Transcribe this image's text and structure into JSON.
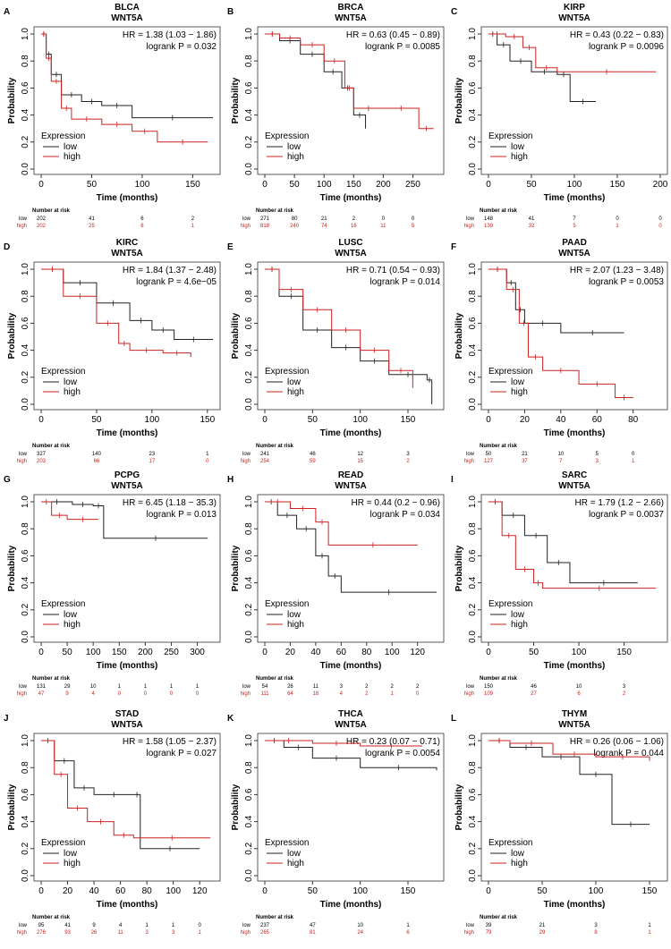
{
  "colors": {
    "low": "#222222",
    "high": "#cc2222"
  },
  "common": {
    "ylabel": "Probability",
    "xlabel": "Time (months)",
    "legend_title": "Expression",
    "legend_low": "low",
    "legend_high": "high",
    "risk_title": "Number at risk",
    "yticks": [
      "0.0",
      "0.2",
      "0.4",
      "0.6",
      "0.8",
      "1.0"
    ]
  },
  "chart_data": [
    {
      "type": "line",
      "letter": "A",
      "cancer": "BLCA",
      "gene": "WNT5A",
      "hr": "HR = 1.38 (1.03 − 1.86)",
      "p": "logrank P = 0.032",
      "xlim": [
        0,
        170
      ],
      "xticks": [
        0,
        50,
        100,
        150
      ],
      "ylim": [
        0,
        1
      ],
      "risk": {
        "low": [
          "202",
          "41",
          "6",
          "2"
        ],
        "high": [
          "202",
          "25",
          "6",
          "1"
        ]
      },
      "series": [
        {
          "name": "low",
          "x": [
            0,
            5,
            10,
            20,
            40,
            60,
            90,
            170
          ],
          "y": [
            1,
            0.85,
            0.7,
            0.55,
            0.5,
            0.47,
            0.38,
            0.38
          ]
        },
        {
          "name": "high",
          "x": [
            0,
            5,
            10,
            20,
            30,
            60,
            90,
            115,
            165
          ],
          "y": [
            1,
            0.82,
            0.65,
            0.45,
            0.37,
            0.33,
            0.28,
            0.2,
            0.2
          ]
        }
      ]
    },
    {
      "type": "line",
      "letter": "B",
      "cancer": "BRCA",
      "gene": "WNT5A",
      "hr": "HR = 0.63 (0.45 − 0.89)",
      "p": "logrank P = 0.0085",
      "xlim": [
        0,
        290
      ],
      "xticks": [
        0,
        50,
        100,
        150,
        200,
        250
      ],
      "ylim": [
        0,
        1
      ],
      "risk": {
        "low": [
          "271",
          "80",
          "21",
          "2",
          "0",
          "0"
        ],
        "high": [
          "818",
          "240",
          "74",
          "16",
          "11",
          "5"
        ]
      },
      "series": [
        {
          "name": "low",
          "x": [
            0,
            25,
            60,
            100,
            130,
            150,
            170
          ],
          "y": [
            1,
            0.95,
            0.85,
            0.72,
            0.6,
            0.4,
            0.3
          ]
        },
        {
          "name": "high",
          "x": [
            0,
            25,
            60,
            100,
            135,
            150,
            200,
            260,
            285
          ],
          "y": [
            1,
            0.97,
            0.92,
            0.8,
            0.6,
            0.45,
            0.45,
            0.3,
            0.3
          ]
        }
      ]
    },
    {
      "type": "line",
      "letter": "C",
      "cancer": "KIRP",
      "gene": "WNT5A",
      "hr": "HR = 0.43 (0.22 − 0.83)",
      "p": "logrank P = 0.0096",
      "xlim": [
        0,
        200
      ],
      "xticks": [
        0,
        50,
        100,
        150,
        200
      ],
      "ylim": [
        0,
        1
      ],
      "risk": {
        "low": [
          "148",
          "41",
          "7",
          "0",
          "0"
        ],
        "high": [
          "139",
          "32",
          "5",
          "1",
          "0"
        ]
      },
      "series": [
        {
          "name": "low",
          "x": [
            0,
            10,
            25,
            50,
            80,
            95,
            125
          ],
          "y": [
            1,
            0.92,
            0.8,
            0.72,
            0.7,
            0.5,
            0.5
          ]
        },
        {
          "name": "high",
          "x": [
            0,
            20,
            40,
            55,
            80,
            195
          ],
          "y": [
            1,
            0.98,
            0.9,
            0.75,
            0.72,
            0.72
          ]
        }
      ]
    },
    {
      "type": "line",
      "letter": "D",
      "cancer": "KIRC",
      "gene": "WNT5A",
      "hr": "HR = 1.84 (1.37 − 2.48)",
      "p": "logrank P = 4.6e−05",
      "xlim": [
        0,
        155
      ],
      "xticks": [
        0,
        50,
        100,
        150
      ],
      "ylim": [
        0,
        1
      ],
      "risk": {
        "low": [
          "327",
          "140",
          "23",
          "1"
        ],
        "high": [
          "203",
          "66",
          "17",
          "0"
        ]
      },
      "series": [
        {
          "name": "low",
          "x": [
            0,
            20,
            50,
            80,
            100,
            120,
            155
          ],
          "y": [
            1,
            0.9,
            0.75,
            0.62,
            0.55,
            0.48,
            0.48
          ]
        },
        {
          "name": "high",
          "x": [
            0,
            20,
            50,
            70,
            80,
            110,
            135
          ],
          "y": [
            1,
            0.8,
            0.6,
            0.45,
            0.4,
            0.38,
            0.35
          ]
        }
      ]
    },
    {
      "type": "line",
      "letter": "E",
      "cancer": "LUSC",
      "gene": "WNT5A",
      "hr": "HR = 0.71 (0.54 − 0.93)",
      "p": "logrank P = 0.014",
      "xlim": [
        0,
        180
      ],
      "xticks": [
        0,
        50,
        100,
        150
      ],
      "ylim": [
        0,
        1
      ],
      "risk": {
        "low": [
          "241",
          "46",
          "12",
          "3"
        ],
        "high": [
          "254",
          "59",
          "15",
          "2"
        ]
      },
      "series": [
        {
          "name": "low",
          "x": [
            0,
            15,
            40,
            70,
            100,
            130,
            170,
            175
          ],
          "y": [
            1,
            0.8,
            0.55,
            0.42,
            0.32,
            0.22,
            0.18,
            0
          ]
        },
        {
          "name": "high",
          "x": [
            0,
            15,
            40,
            70,
            100,
            130,
            155
          ],
          "y": [
            1,
            0.85,
            0.7,
            0.55,
            0.4,
            0.25,
            0.12
          ]
        }
      ]
    },
    {
      "type": "line",
      "letter": "F",
      "cancer": "PAAD",
      "gene": "WNT5A",
      "hr": "HR = 2.07 (1.23 − 3.48)",
      "p": "logrank P = 0.0053",
      "xlim": [
        0,
        95
      ],
      "xticks": [
        0,
        20,
        40,
        60,
        80
      ],
      "ylim": [
        0,
        1
      ],
      "risk": {
        "low": [
          "50",
          "21",
          "10",
          "5",
          "0"
        ],
        "high": [
          "127",
          "37",
          "7",
          "3",
          "1"
        ]
      },
      "series": [
        {
          "name": "low",
          "x": [
            0,
            10,
            15,
            20,
            40,
            75
          ],
          "y": [
            1,
            0.9,
            0.7,
            0.6,
            0.53,
            0.53
          ]
        },
        {
          "name": "high",
          "x": [
            0,
            10,
            17,
            22,
            30,
            50,
            70,
            80
          ],
          "y": [
            1,
            0.85,
            0.6,
            0.35,
            0.25,
            0.15,
            0.05,
            0.05
          ]
        }
      ]
    },
    {
      "type": "line",
      "letter": "G",
      "cancer": "PCPG",
      "gene": "WNT5A",
      "hr": "HR = 6.45 (1.18 − 35.3)",
      "p": "logrank P = 0.013",
      "xlim": [
        0,
        330
      ],
      "xticks": [
        0,
        50,
        100,
        150,
        200,
        250,
        300
      ],
      "ylim": [
        0,
        1
      ],
      "risk": {
        "low": [
          "131",
          "29",
          "10",
          "1",
          "1",
          "1",
          "1"
        ],
        "high": [
          "47",
          "9",
          "4",
          "0",
          "0",
          "0",
          "0"
        ]
      },
      "series": [
        {
          "name": "low",
          "x": [
            0,
            60,
            100,
            120,
            320
          ],
          "y": [
            1,
            0.98,
            0.97,
            0.73,
            0.73
          ]
        },
        {
          "name": "high",
          "x": [
            0,
            20,
            50,
            110
          ],
          "y": [
            1,
            0.9,
            0.87,
            0.87
          ]
        }
      ]
    },
    {
      "type": "line",
      "letter": "H",
      "cancer": "READ",
      "gene": "WNT5A",
      "hr": "HR = 0.44 (0.2 − 0.96)",
      "p": "logrank P = 0.034",
      "xlim": [
        0,
        135
      ],
      "xticks": [
        0,
        20,
        40,
        60,
        80,
        100,
        120
      ],
      "ylim": [
        0,
        1
      ],
      "risk": {
        "low": [
          "54",
          "26",
          "11",
          "3",
          "2",
          "2",
          "2"
        ],
        "high": [
          "111",
          "64",
          "18",
          "4",
          "2",
          "1",
          "0"
        ]
      },
      "series": [
        {
          "name": "low",
          "x": [
            0,
            10,
            25,
            40,
            50,
            60,
            135
          ],
          "y": [
            1,
            0.9,
            0.8,
            0.6,
            0.45,
            0.33,
            0.33
          ]
        },
        {
          "name": "high",
          "x": [
            0,
            20,
            40,
            50,
            120
          ],
          "y": [
            1,
            0.95,
            0.85,
            0.68,
            0.68
          ]
        }
      ]
    },
    {
      "type": "line",
      "letter": "I",
      "cancer": "SARC",
      "gene": "WNT5A",
      "hr": "HR = 1.79 (1.2 − 2.66)",
      "p": "logrank P = 0.0037",
      "xlim": [
        0,
        190
      ],
      "xticks": [
        0,
        50,
        100,
        150
      ],
      "ylim": [
        0,
        1
      ],
      "risk": {
        "low": [
          "150",
          "46",
          "10",
          "3"
        ],
        "high": [
          "109",
          "27",
          "6",
          "2"
        ]
      },
      "series": [
        {
          "name": "low",
          "x": [
            0,
            15,
            40,
            65,
            90,
            165
          ],
          "y": [
            1,
            0.9,
            0.75,
            0.55,
            0.4,
            0.4
          ]
        },
        {
          "name": "high",
          "x": [
            0,
            15,
            30,
            50,
            60,
            185
          ],
          "y": [
            1,
            0.75,
            0.5,
            0.4,
            0.36,
            0.36
          ]
        }
      ]
    },
    {
      "type": "line",
      "letter": "J",
      "cancer": "STAD",
      "gene": "WNT5A",
      "hr": "HR = 1.58 (1.05 − 2.37)",
      "p": "logrank P = 0.027",
      "xlim": [
        0,
        130
      ],
      "xticks": [
        0,
        20,
        40,
        60,
        80,
        100,
        120
      ],
      "ylim": [
        0,
        1
      ],
      "risk": {
        "low": [
          "95",
          "41",
          "9",
          "4",
          "1",
          "1",
          "0"
        ],
        "high": [
          "276",
          "93",
          "26",
          "11",
          "3",
          "3",
          "1"
        ]
      },
      "series": [
        {
          "name": "low",
          "x": [
            0,
            10,
            25,
            40,
            70,
            75,
            120
          ],
          "y": [
            1,
            0.85,
            0.65,
            0.6,
            0.6,
            0.2,
            0.2
          ]
        },
        {
          "name": "high",
          "x": [
            0,
            10,
            20,
            35,
            55,
            70,
            128
          ],
          "y": [
            1,
            0.75,
            0.5,
            0.4,
            0.3,
            0.28,
            0.28
          ]
        }
      ]
    },
    {
      "type": "line",
      "letter": "K",
      "cancer": "THCA",
      "gene": "WNT5A",
      "hr": "HR = 0.23 (0.07 − 0.71)",
      "p": "logrank P = 0.0054",
      "xlim": [
        0,
        180
      ],
      "xticks": [
        0,
        50,
        100,
        150
      ],
      "ylim": [
        0,
        1
      ],
      "risk": {
        "low": [
          "237",
          "47",
          "10",
          "1"
        ],
        "high": [
          "265",
          "81",
          "24",
          "6"
        ]
      },
      "series": [
        {
          "name": "low",
          "x": [
            0,
            20,
            50,
            100,
            180
          ],
          "y": [
            1,
            0.95,
            0.87,
            0.8,
            0.78
          ]
        },
        {
          "name": "high",
          "x": [
            0,
            50,
            100,
            165
          ],
          "y": [
            1,
            0.98,
            0.96,
            0.96
          ]
        }
      ]
    },
    {
      "type": "line",
      "letter": "L",
      "cancer": "THYM",
      "gene": "WNT5A",
      "hr": "HR = 0.26 (0.06 − 1.06)",
      "p": "logrank P = 0.044",
      "xlim": [
        0,
        160
      ],
      "xticks": [
        0,
        50,
        100,
        150
      ],
      "ylim": [
        0,
        1
      ],
      "risk": {
        "low": [
          "39",
          "21",
          "3",
          "1"
        ],
        "high": [
          "79",
          "29",
          "8",
          "1"
        ]
      },
      "series": [
        {
          "name": "low",
          "x": [
            0,
            20,
            50,
            85,
            115,
            150
          ],
          "y": [
            1,
            0.95,
            0.88,
            0.75,
            0.38,
            0.38
          ]
        },
        {
          "name": "high",
          "x": [
            0,
            20,
            60,
            100,
            150
          ],
          "y": [
            1,
            0.98,
            0.9,
            0.88,
            0.85
          ]
        }
      ]
    }
  ]
}
